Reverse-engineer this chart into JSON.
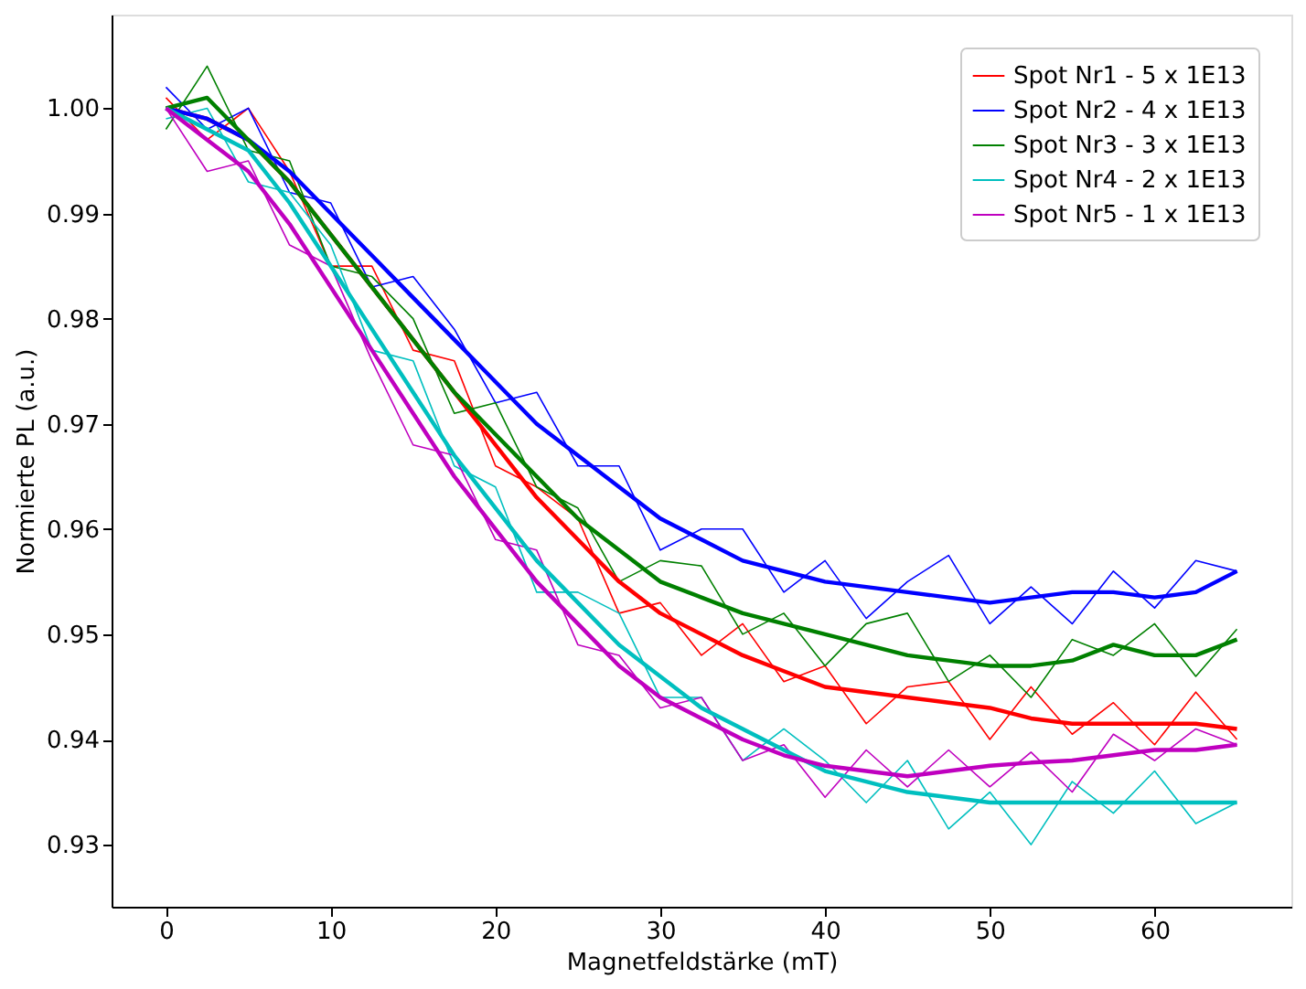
{
  "chart_data": {
    "type": "line",
    "xlabel": "Magnetfeldstärke (mT)",
    "ylabel": "Normierte PL (a.u.)",
    "x": [
      0,
      2.5,
      5,
      7.5,
      10,
      12.5,
      15,
      17.5,
      20,
      22.5,
      25,
      27.5,
      30,
      32.5,
      35,
      37.5,
      40,
      42.5,
      45,
      47.5,
      50,
      52.5,
      55,
      57.5,
      60,
      62.5,
      65
    ],
    "series": [
      {
        "name": "Spot Nr1 - 5 x 1E13",
        "color": "#ff0000",
        "values": [
          1.001,
          0.997,
          1.0,
          0.994,
          0.985,
          0.985,
          0.977,
          0.976,
          0.966,
          0.964,
          0.961,
          0.952,
          0.953,
          0.948,
          0.951,
          0.9455,
          0.947,
          0.9415,
          0.945,
          0.9455,
          0.94,
          0.945,
          0.9405,
          0.9435,
          0.9395,
          0.9445,
          0.94
        ]
      },
      {
        "name": "Spot Nr2 - 4 x 1E13",
        "color": "#0000ff",
        "values": [
          1.002,
          0.998,
          1.0,
          0.992,
          0.991,
          0.983,
          0.984,
          0.979,
          0.972,
          0.973,
          0.966,
          0.966,
          0.958,
          0.96,
          0.96,
          0.954,
          0.957,
          0.9515,
          0.955,
          0.9575,
          0.951,
          0.9545,
          0.951,
          0.956,
          0.9525,
          0.957,
          0.956
        ]
      },
      {
        "name": "Spot Nr3 - 3 x 1E13",
        "color": "#008000",
        "values": [
          0.998,
          1.004,
          0.996,
          0.995,
          0.985,
          0.984,
          0.98,
          0.971,
          0.972,
          0.964,
          0.962,
          0.955,
          0.957,
          0.9565,
          0.95,
          0.952,
          0.947,
          0.951,
          0.952,
          0.9455,
          0.948,
          0.944,
          0.9495,
          0.948,
          0.951,
          0.946,
          0.9505
        ]
      },
      {
        "name": "Spot Nr4 - 2 x 1E13",
        "color": "#00bfbf",
        "values": [
          0.999,
          1.0,
          0.993,
          0.992,
          0.987,
          0.977,
          0.976,
          0.966,
          0.964,
          0.954,
          0.954,
          0.952,
          0.944,
          0.944,
          0.938,
          0.941,
          0.938,
          0.934,
          0.938,
          0.9315,
          0.935,
          0.93,
          0.936,
          0.933,
          0.937,
          0.932,
          0.934
        ]
      },
      {
        "name": "Spot Nr5 - 1 x 1E13",
        "color": "#bf00bf",
        "values": [
          1.0,
          0.994,
          0.995,
          0.987,
          0.985,
          0.976,
          0.968,
          0.967,
          0.959,
          0.958,
          0.949,
          0.948,
          0.943,
          0.944,
          0.938,
          0.9395,
          0.9345,
          0.939,
          0.9355,
          0.939,
          0.9355,
          0.9388,
          0.935,
          0.9405,
          0.938,
          0.941,
          0.9395
        ]
      },
      {
        "color": "#ff0000",
        "values": [
          1.0,
          0.999,
          0.997,
          0.993,
          0.988,
          0.983,
          0.978,
          0.973,
          0.968,
          0.963,
          0.959,
          0.955,
          0.952,
          0.95,
          0.948,
          0.9465,
          0.945,
          0.9445,
          0.944,
          0.9435,
          0.943,
          0.942,
          0.9415,
          0.9415,
          0.9415,
          0.9415,
          0.941
        ]
      },
      {
        "color": "#0000ff",
        "values": [
          1.0,
          0.999,
          0.997,
          0.994,
          0.99,
          0.986,
          0.982,
          0.978,
          0.974,
          0.97,
          0.967,
          0.964,
          0.961,
          0.959,
          0.957,
          0.956,
          0.955,
          0.9545,
          0.954,
          0.9535,
          0.953,
          0.9535,
          0.954,
          0.954,
          0.9535,
          0.954,
          0.956
        ]
      },
      {
        "color": "#008000",
        "values": [
          1.0,
          1.001,
          0.997,
          0.993,
          0.988,
          0.983,
          0.978,
          0.973,
          0.969,
          0.965,
          0.961,
          0.958,
          0.955,
          0.9535,
          0.952,
          0.951,
          0.95,
          0.949,
          0.948,
          0.9475,
          0.947,
          0.947,
          0.9475,
          0.949,
          0.948,
          0.948,
          0.9495
        ]
      },
      {
        "color": "#00bfbf",
        "values": [
          1.0,
          0.998,
          0.996,
          0.991,
          0.985,
          0.979,
          0.973,
          0.967,
          0.962,
          0.957,
          0.953,
          0.949,
          0.946,
          0.943,
          0.941,
          0.939,
          0.937,
          0.936,
          0.935,
          0.9345,
          0.934,
          0.934,
          0.934,
          0.934,
          0.934,
          0.934,
          0.934
        ]
      },
      {
        "color": "#bf00bf",
        "values": [
          1.0,
          0.997,
          0.994,
          0.989,
          0.983,
          0.977,
          0.971,
          0.965,
          0.96,
          0.955,
          0.951,
          0.947,
          0.944,
          0.942,
          0.94,
          0.9385,
          0.9375,
          0.937,
          0.9365,
          0.937,
          0.9375,
          0.9378,
          0.938,
          0.9385,
          0.939,
          0.939,
          0.9395
        ]
      }
    ],
    "xlim": [
      -3.3,
      68.3
    ],
    "ylim": [
      0.9241,
      1.0089
    ],
    "xticks": [
      0,
      10,
      20,
      30,
      40,
      50,
      60
    ],
    "yticks": [
      {
        "value": 0.93,
        "label": "0.93"
      },
      {
        "value": 0.94,
        "label": "0.94"
      },
      {
        "value": 0.95,
        "label": "0.95"
      },
      {
        "value": 0.96,
        "label": "0.96"
      },
      {
        "value": 0.97,
        "label": "0.97"
      },
      {
        "value": 0.98,
        "label": "0.98"
      },
      {
        "value": 0.99,
        "label": "0.99"
      },
      {
        "value": 1.0,
        "label": "1.00"
      }
    ],
    "grid": false,
    "legend": "top right"
  }
}
